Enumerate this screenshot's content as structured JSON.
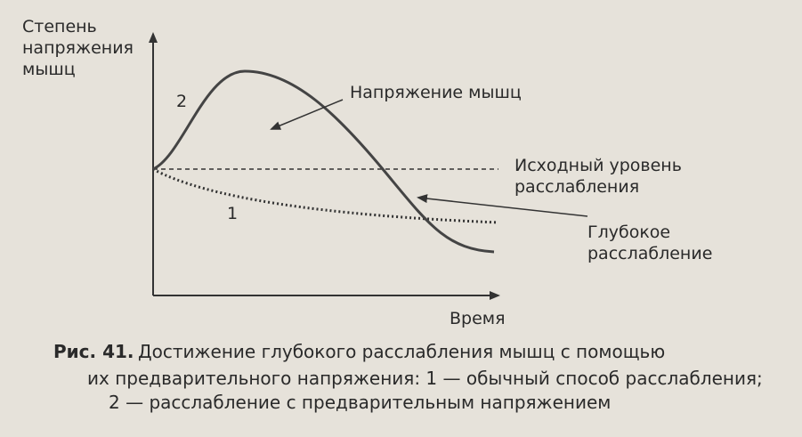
{
  "axes": {
    "y_label": [
      "Степень",
      "напряжения",
      "мышц"
    ],
    "x_label": "Время"
  },
  "curves": [
    {
      "label": "1"
    },
    {
      "label": "2"
    }
  ],
  "annotations": {
    "tension": "Напряжение мышц",
    "baseline": [
      "Исходный уровень",
      "расслабления"
    ],
    "deep": [
      "Глубокое",
      "расслабление"
    ]
  },
  "caption": {
    "number": "Рис. 41.",
    "lines": [
      "Достижение глубокого расслабления мышц с помощью",
      "их предварительного напряжения: 1 — обычный способ расслабления;",
      "2 — расслабление с предварительным напряжением"
    ]
  }
}
